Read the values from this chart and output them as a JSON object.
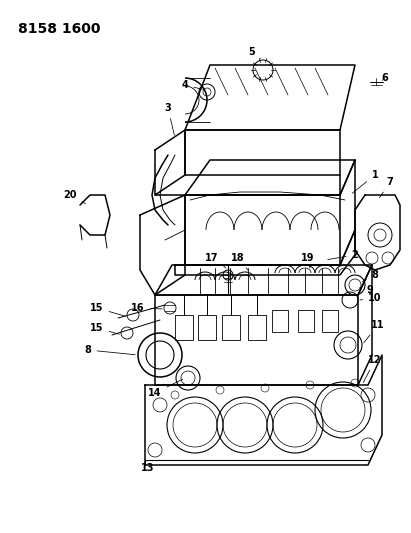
{
  "title": "8158 1600",
  "bg_color": "#ffffff",
  "line_color": "#000000",
  "fig_width": 4.11,
  "fig_height": 5.33,
  "dpi": 100,
  "title_fontsize": 10,
  "title_fontweight": "bold",
  "label_fontsize": 7,
  "label_fontweight": "bold"
}
